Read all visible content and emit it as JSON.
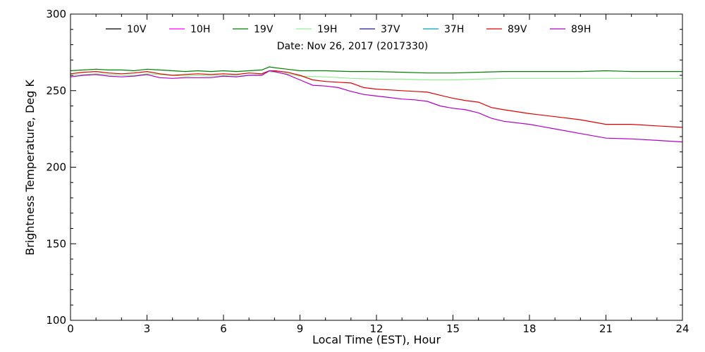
{
  "chart_data": {
    "type": "line",
    "title": "",
    "subtitle": "Date: Nov 26, 2017 (2017330)",
    "xlabel": "Local Time (EST), Hour",
    "ylabel": "Brightness Temperature, Deg K",
    "xlim": [
      0,
      24
    ],
    "ylim": [
      100,
      300
    ],
    "xticks": [
      0,
      3,
      6,
      9,
      12,
      15,
      18,
      21,
      24
    ],
    "yticks": [
      100,
      150,
      200,
      250,
      300
    ],
    "grid": false,
    "legend_position": "top",
    "series": [
      {
        "name": "10V",
        "color": "#000000",
        "x": [],
        "y": []
      },
      {
        "name": "10H",
        "color": "#ff00ff",
        "x": [],
        "y": []
      },
      {
        "name": "19V",
        "color": "#008000",
        "x": [
          0,
          0.5,
          1,
          1.5,
          2,
          2.5,
          3,
          3.5,
          4,
          4.5,
          5,
          5.5,
          6,
          6.5,
          7,
          7.5,
          7.8,
          8,
          8.5,
          9,
          10,
          11,
          12,
          13,
          14,
          15,
          16,
          17,
          18,
          19,
          20,
          21,
          22,
          23,
          24
        ],
        "y": [
          263,
          263.5,
          264,
          263.5,
          263.5,
          263,
          264,
          263.5,
          263,
          262.5,
          263,
          262.5,
          263,
          262.5,
          263,
          263.5,
          265.5,
          265,
          264,
          263,
          263,
          262.5,
          262.5,
          262,
          261.5,
          261.5,
          262,
          262.5,
          262.5,
          262.5,
          262.5,
          263,
          262.5,
          262.5,
          262.5
        ]
      },
      {
        "name": "19H",
        "color": "#90ee90",
        "x": [
          0,
          0.5,
          1,
          1.5,
          2,
          2.5,
          3,
          3.5,
          4,
          4.5,
          5,
          5.5,
          6,
          6.5,
          7,
          7.5,
          7.8,
          8,
          8.5,
          9,
          10,
          11,
          12,
          13,
          14,
          15,
          16,
          17,
          18,
          19,
          20,
          21,
          22,
          23,
          24
        ],
        "y": [
          260,
          260.5,
          261,
          260.5,
          260,
          260,
          261,
          260.5,
          260,
          259.5,
          260,
          259.5,
          260,
          259.5,
          260,
          260.5,
          262.5,
          262,
          261,
          259.5,
          259,
          258,
          257.5,
          257.5,
          257,
          257,
          257.5,
          258,
          258,
          258,
          258,
          258,
          258,
          258,
          258
        ]
      },
      {
        "name": "37V",
        "color": "#1f1fa0",
        "x": [],
        "y": []
      },
      {
        "name": "37H",
        "color": "#00a0c0",
        "x": [],
        "y": []
      },
      {
        "name": "89V",
        "color": "#e00000",
        "x": [
          0,
          0.5,
          1,
          1.5,
          2,
          2.5,
          3,
          3.5,
          4,
          4.5,
          5,
          5.5,
          6,
          6.5,
          7,
          7.5,
          7.8,
          8,
          8.5,
          9,
          9.5,
          10,
          10.5,
          11,
          11.5,
          12,
          12.5,
          13,
          13.5,
          14,
          14.5,
          15,
          15.5,
          16,
          16.5,
          17,
          18,
          19,
          20,
          21,
          22,
          23,
          24
        ],
        "y": [
          261,
          262,
          262.5,
          261.5,
          261,
          261.5,
          262.5,
          261,
          260,
          260.5,
          261,
          260.5,
          261,
          260.5,
          261.5,
          261,
          263,
          263,
          262,
          260,
          257,
          256,
          255.5,
          255,
          252,
          251,
          250.5,
          250,
          249.5,
          249,
          247,
          245,
          243.5,
          242.5,
          239,
          237.5,
          235,
          233,
          231,
          228,
          228,
          227,
          226
        ]
      },
      {
        "name": "89H",
        "color": "#b000c8",
        "x": [
          0,
          0.5,
          1,
          1.5,
          2,
          2.5,
          3,
          3.5,
          4,
          4.5,
          5,
          5.5,
          6,
          6.5,
          7,
          7.5,
          7.8,
          8,
          8.5,
          9,
          9.5,
          10,
          10.5,
          11,
          11.5,
          12,
          12.5,
          13,
          13.5,
          14,
          14.5,
          15,
          15.5,
          16,
          16.5,
          17,
          18,
          19,
          20,
          21,
          22,
          23,
          24
        ],
        "y": [
          259,
          260,
          260.5,
          259.5,
          259,
          259.5,
          260.5,
          258.5,
          258,
          258.5,
          258.5,
          258.5,
          259.5,
          259,
          260,
          260,
          263,
          262.5,
          260.5,
          257,
          253.5,
          253,
          252,
          249.5,
          247.5,
          246.5,
          245.5,
          244.5,
          244,
          243,
          240,
          238.5,
          237.5,
          235.5,
          232,
          230,
          228,
          225,
          222,
          219,
          218.5,
          217.5,
          216.5
        ]
      }
    ]
  }
}
